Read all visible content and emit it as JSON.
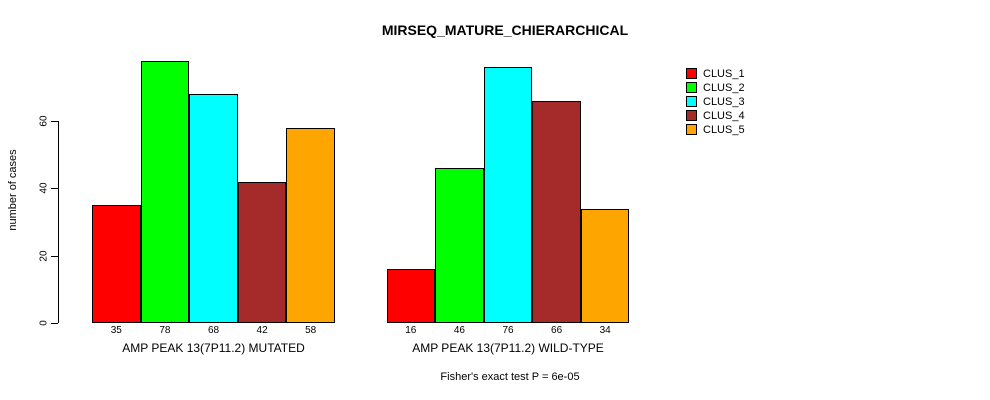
{
  "title": "MIRSEQ_MATURE_CHIERARCHICAL",
  "chart_data": {
    "type": "bar",
    "title": "MIRSEQ_MATURE_CHIERARCHICAL",
    "ylabel": "number of cases",
    "xlabel": "",
    "yticks": [
      0,
      20,
      40,
      60
    ],
    "ylim": [
      0,
      80
    ],
    "grid": false,
    "legend_position": "right",
    "categories": [
      "AMP PEAK 13(7P11.2) MUTATED",
      "AMP PEAK 13(7P11.2) WILD-TYPE"
    ],
    "series": [
      {
        "name": "CLUS_1",
        "color": "#FF0000",
        "values": [
          35,
          16
        ]
      },
      {
        "name": "CLUS_2",
        "color": "#00FF00",
        "values": [
          78,
          46
        ]
      },
      {
        "name": "CLUS_3",
        "color": "#00FFFF",
        "values": [
          68,
          76
        ]
      },
      {
        "name": "CLUS_4",
        "color": "#A52A2A",
        "values": [
          42,
          66
        ]
      },
      {
        "name": "CLUS_5",
        "color": "#FFA500",
        "values": [
          58,
          34
        ]
      }
    ],
    "bar_value_labels": [
      [
        "35",
        "78",
        "68",
        "42",
        "58"
      ],
      [
        "16",
        "46",
        "76",
        "66",
        "34"
      ]
    ],
    "annotation": "Fisher's exact test P = 6e-05"
  }
}
